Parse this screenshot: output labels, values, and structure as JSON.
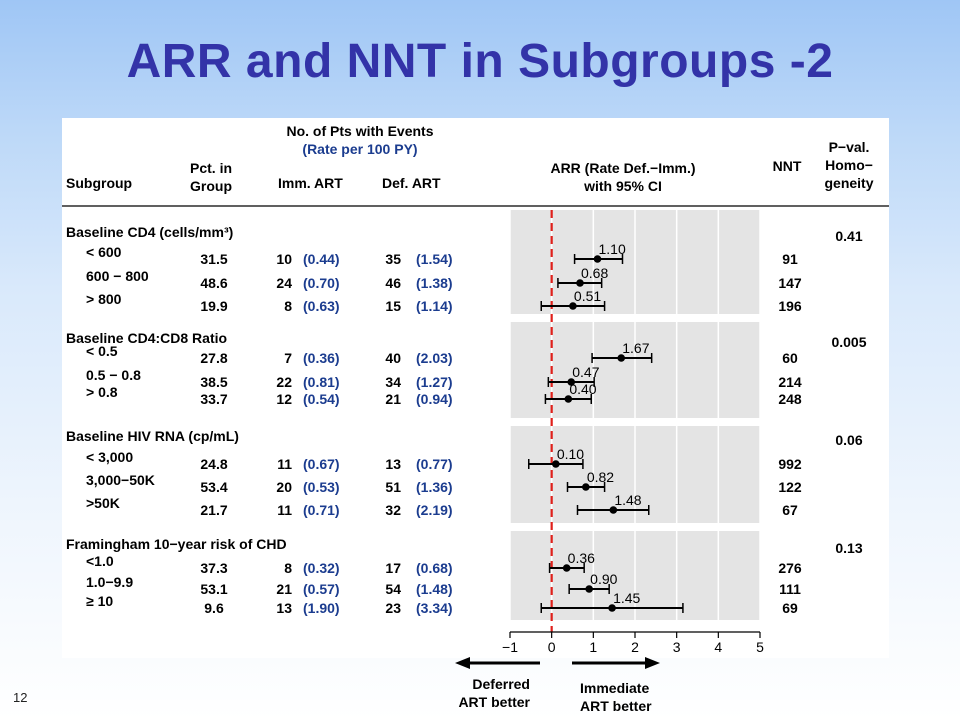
{
  "slide": {
    "title": "ARR and NNT in Subgroups -2",
    "number": "12"
  },
  "headers": {
    "subgroup": "Subgroup",
    "pct_line1": "Pct. in",
    "pct_line2": "Group",
    "events_line1": "No. of Pts with Events",
    "events_line2": "(Rate per 100 PY)",
    "imm": "Imm. ART",
    "def": "Def. ART",
    "arr_line1": "ARR (Rate Def.−Imm.)",
    "arr_line2": "with 95% CI",
    "nnt": "NNT",
    "pval_line1": "P−val.",
    "pval_line2": "Homo−",
    "pval_line3": "geneity"
  },
  "footer": {
    "left_line1": "Deferred",
    "left_line2": "ART better",
    "right_line1": "Immediate",
    "right_line2": "ART better"
  },
  "colors": {
    "title": "#3333a8",
    "rate_text": "#1b3c8f",
    "ref_line": "#e0201b",
    "plot_bg": "#e4e4e4"
  },
  "chart_data": {
    "type": "forest",
    "xlim": [
      -1,
      5
    ],
    "xticks": [
      "−1",
      "0",
      "1",
      "2",
      "3",
      "4",
      "5"
    ],
    "reference_line": 0,
    "groups": [
      {
        "label": "Baseline CD4 (cells/mm³)",
        "pval": "0.41",
        "rows": [
          {
            "label": "< 600",
            "pct": "31.5",
            "imm_n": "10",
            "imm_rate": "(0.44)",
            "def_n": "35",
            "def_rate": "(1.54)",
            "arr": 1.1,
            "arr_label": "1.10",
            "lo": 0.55,
            "hi": 1.7,
            "nnt": "91"
          },
          {
            "label": "600 − 800",
            "pct": "48.6",
            "imm_n": "24",
            "imm_rate": "(0.70)",
            "def_n": "46",
            "def_rate": "(1.38)",
            "arr": 0.68,
            "arr_label": "0.68",
            "lo": 0.15,
            "hi": 1.2,
            "nnt": "147"
          },
          {
            "label": "> 800",
            "pct": "19.9",
            "imm_n": "8",
            "imm_rate": "(0.63)",
            "def_n": "15",
            "def_rate": "(1.14)",
            "arr": 0.51,
            "arr_label": "0.51",
            "lo": -0.25,
            "hi": 1.27,
            "nnt": "196"
          }
        ]
      },
      {
        "label": "Baseline CD4:CD8 Ratio",
        "pval": "0.005",
        "rows": [
          {
            "label": "< 0.5",
            "pct": "27.8",
            "imm_n": "7",
            "imm_rate": "(0.36)",
            "def_n": "40",
            "def_rate": "(2.03)",
            "arr": 1.67,
            "arr_label": "1.67",
            "lo": 0.97,
            "hi": 2.4,
            "nnt": "60"
          },
          {
            "label": "0.5 − 0.8",
            "pct": "38.5",
            "imm_n": "22",
            "imm_rate": "(0.81)",
            "def_n": "34",
            "def_rate": "(1.27)",
            "arr": 0.47,
            "arr_label": "0.47",
            "lo": -0.08,
            "hi": 1.02,
            "nnt": "214"
          },
          {
            "label": "> 0.8",
            "pct": "33.7",
            "imm_n": "12",
            "imm_rate": "(0.54)",
            "def_n": "21",
            "def_rate": "(0.94)",
            "arr": 0.4,
            "arr_label": "0.40",
            "lo": -0.15,
            "hi": 0.95,
            "nnt": "248"
          }
        ]
      },
      {
        "label": "Baseline HIV RNA (cp/mL)",
        "pval": "0.06",
        "rows": [
          {
            "label": "< 3,000",
            "pct": "24.8",
            "imm_n": "11",
            "imm_rate": "(0.67)",
            "def_n": "13",
            "def_rate": "(0.77)",
            "arr": 0.1,
            "arr_label": "0.10",
            "lo": -0.55,
            "hi": 0.75,
            "nnt": "992"
          },
          {
            "label": "3,000−50K",
            "pct": "53.4",
            "imm_n": "20",
            "imm_rate": "(0.53)",
            "def_n": "51",
            "def_rate": "(1.36)",
            "arr": 0.82,
            "arr_label": "0.82",
            "lo": 0.38,
            "hi": 1.27,
            "nnt": "122"
          },
          {
            "label": ">50K",
            "pct": "21.7",
            "imm_n": "11",
            "imm_rate": "(0.71)",
            "def_n": "32",
            "def_rate": "(2.19)",
            "arr": 1.48,
            "arr_label": "1.48",
            "lo": 0.62,
            "hi": 2.33,
            "nnt": "67"
          }
        ]
      },
      {
        "label": "Framingham 10−year risk of CHD",
        "pval": "0.13",
        "rows": [
          {
            "label": "<1.0",
            "pct": "37.3",
            "imm_n": "8",
            "imm_rate": "(0.32)",
            "def_n": "17",
            "def_rate": "(0.68)",
            "arr": 0.36,
            "arr_label": "0.36",
            "lo": -0.05,
            "hi": 0.78,
            "nnt": "276"
          },
          {
            "label": "1.0−9.9",
            "pct": "53.1",
            "imm_n": "21",
            "imm_rate": "(0.57)",
            "def_n": "54",
            "def_rate": "(1.48)",
            "arr": 0.9,
            "arr_label": "0.90",
            "lo": 0.42,
            "hi": 1.38,
            "nnt": "111"
          },
          {
            "label": "≥ 10",
            "pct": "9.6",
            "imm_n": "13",
            "imm_rate": "(1.90)",
            "def_n": "23",
            "def_rate": "(3.34)",
            "arr": 1.45,
            "arr_label": "1.45",
            "lo": -0.25,
            "hi": 3.15,
            "nnt": "69"
          }
        ]
      }
    ]
  }
}
